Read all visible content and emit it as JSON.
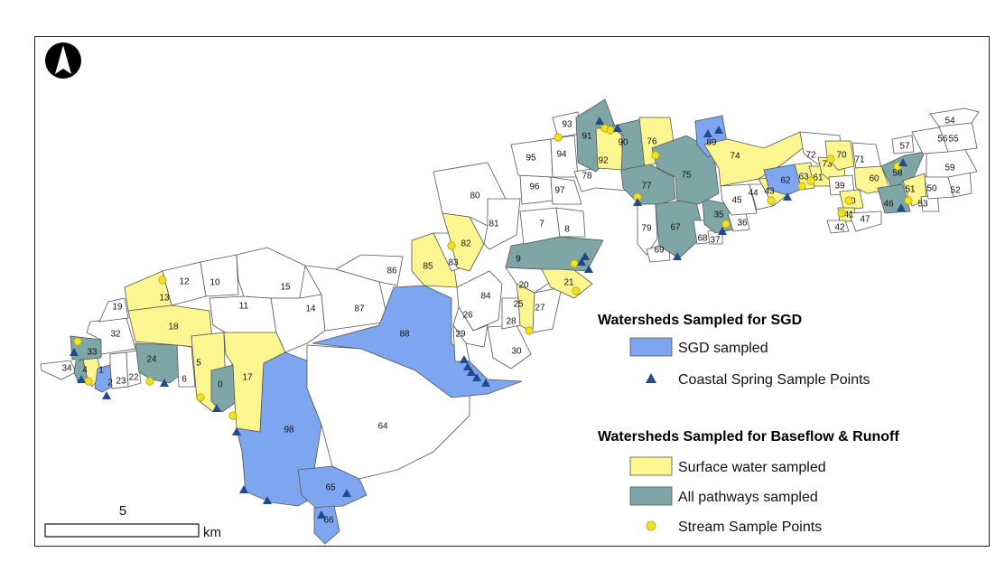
{
  "colors": {
    "sgd": "#7ea6f0",
    "surface": "#fbf68f",
    "all": "#7fa6a6",
    "none": "#ffffff",
    "spring": "#1f4b8e",
    "stream": "#efe02a",
    "border": "#555555"
  },
  "legend": {
    "group1_title": "Watersheds Sampled for SGD",
    "sgd_label": "SGD sampled",
    "spring_label": "Coastal Spring Sample Points",
    "group2_title": "Watersheds Sampled for Baseflow & Runoff",
    "surface_label": "Surface water sampled",
    "all_label": "All pathways sampled",
    "stream_label": "Stream Sample Points"
  },
  "scale": {
    "value": "5",
    "unit": "km"
  },
  "north_arrow": "north-arrow-icon",
  "watersheds": [
    {
      "id": "34",
      "cat": "none"
    },
    {
      "id": "4",
      "cat": "all"
    },
    {
      "id": "1",
      "cat": "surface"
    },
    {
      "id": "2",
      "cat": "sgd"
    },
    {
      "id": "23",
      "cat": "none"
    },
    {
      "id": "22",
      "cat": "none"
    },
    {
      "id": "33",
      "cat": "all"
    },
    {
      "id": "32",
      "cat": "none"
    },
    {
      "id": "19",
      "cat": "none"
    },
    {
      "id": "13",
      "cat": "surface"
    },
    {
      "id": "12",
      "cat": "none"
    },
    {
      "id": "18",
      "cat": "surface"
    },
    {
      "id": "24",
      "cat": "all"
    },
    {
      "id": "6",
      "cat": "none"
    },
    {
      "id": "10",
      "cat": "none"
    },
    {
      "id": "11",
      "cat": "none"
    },
    {
      "id": "5",
      "cat": "surface"
    },
    {
      "id": "0",
      "cat": "all"
    },
    {
      "id": "17",
      "cat": "surface"
    },
    {
      "id": "15",
      "cat": "none"
    },
    {
      "id": "14",
      "cat": "none"
    },
    {
      "id": "87",
      "cat": "none"
    },
    {
      "id": "86",
      "cat": "none"
    },
    {
      "id": "98",
      "cat": "sgd"
    },
    {
      "id": "65",
      "cat": "sgd"
    },
    {
      "id": "66",
      "cat": "sgd"
    },
    {
      "id": "64",
      "cat": "none"
    },
    {
      "id": "88",
      "cat": "sgd"
    },
    {
      "id": "85",
      "cat": "surface"
    },
    {
      "id": "83",
      "cat": "none"
    },
    {
      "id": "82",
      "cat": "surface"
    },
    {
      "id": "80",
      "cat": "none"
    },
    {
      "id": "81",
      "cat": "none"
    },
    {
      "id": "84",
      "cat": "none"
    },
    {
      "id": "26",
      "cat": "none"
    },
    {
      "id": "29",
      "cat": "none"
    },
    {
      "id": "30",
      "cat": "none"
    },
    {
      "id": "28",
      "cat": "none"
    },
    {
      "id": "25",
      "cat": "surface"
    },
    {
      "id": "27",
      "cat": "none"
    },
    {
      "id": "20",
      "cat": "none"
    },
    {
      "id": "21",
      "cat": "surface"
    },
    {
      "id": "9",
      "cat": "all"
    },
    {
      "id": "7",
      "cat": "none"
    },
    {
      "id": "8",
      "cat": "none"
    },
    {
      "id": "96",
      "cat": "none"
    },
    {
      "id": "97",
      "cat": "none"
    },
    {
      "id": "95",
      "cat": "none"
    },
    {
      "id": "94",
      "cat": "none"
    },
    {
      "id": "93",
      "cat": "none"
    },
    {
      "id": "78",
      "cat": "none"
    },
    {
      "id": "91",
      "cat": "all"
    },
    {
      "id": "92",
      "cat": "surface"
    },
    {
      "id": "90",
      "cat": "all"
    },
    {
      "id": "76",
      "cat": "surface"
    },
    {
      "id": "77",
      "cat": "all"
    },
    {
      "id": "79",
      "cat": "none"
    },
    {
      "id": "69",
      "cat": "none"
    },
    {
      "id": "67",
      "cat": "all"
    },
    {
      "id": "68",
      "cat": "none"
    },
    {
      "id": "37",
      "cat": "none"
    },
    {
      "id": "35",
      "cat": "all"
    },
    {
      "id": "36",
      "cat": "none"
    },
    {
      "id": "75",
      "cat": "all"
    },
    {
      "id": "89",
      "cat": "sgd"
    },
    {
      "id": "74",
      "cat": "surface"
    },
    {
      "id": "45",
      "cat": "none"
    },
    {
      "id": "44",
      "cat": "none"
    },
    {
      "id": "43",
      "cat": "surface"
    },
    {
      "id": "62",
      "cat": "sgd"
    },
    {
      "id": "63",
      "cat": "surface"
    },
    {
      "id": "61",
      "cat": "surface"
    },
    {
      "id": "72",
      "cat": "none"
    },
    {
      "id": "73",
      "cat": "surface"
    },
    {
      "id": "70",
      "cat": "surface"
    },
    {
      "id": "71",
      "cat": "none"
    },
    {
      "id": "39",
      "cat": "none"
    },
    {
      "id": "40",
      "cat": "surface"
    },
    {
      "id": "41",
      "cat": "surface"
    },
    {
      "id": "42",
      "cat": "none"
    },
    {
      "id": "47",
      "cat": "none"
    },
    {
      "id": "60",
      "cat": "surface"
    },
    {
      "id": "58",
      "cat": "all"
    },
    {
      "id": "57",
      "cat": "none"
    },
    {
      "id": "46",
      "cat": "all"
    },
    {
      "id": "51",
      "cat": "surface"
    },
    {
      "id": "53",
      "cat": "none"
    },
    {
      "id": "50",
      "cat": "none"
    },
    {
      "id": "52",
      "cat": "none"
    },
    {
      "id": "59",
      "cat": "none"
    },
    {
      "id": "56",
      "cat": "none"
    },
    {
      "id": "55",
      "cat": "none"
    },
    {
      "id": "54",
      "cat": "none"
    }
  ]
}
